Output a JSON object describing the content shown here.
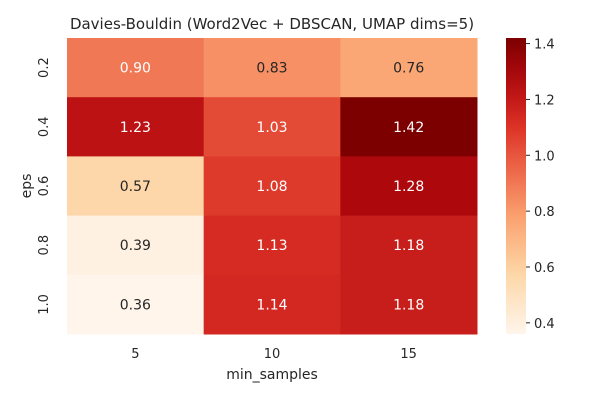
{
  "chart_data": {
    "type": "heatmap",
    "title": "Davies-Bouldin (Word2Vec + DBSCAN, UMAP dims=5)",
    "xlabel": "min_samples",
    "ylabel": "eps",
    "x_categories": [
      "5",
      "10",
      "15"
    ],
    "y_categories": [
      "0.2",
      "0.4",
      "0.6",
      "0.8",
      "1.0"
    ],
    "values": [
      [
        0.9,
        0.83,
        0.76
      ],
      [
        1.23,
        1.03,
        1.42
      ],
      [
        0.57,
        1.08,
        1.28
      ],
      [
        0.39,
        1.13,
        1.18
      ],
      [
        0.36,
        1.14,
        1.18
      ]
    ],
    "labels": [
      [
        "0.90",
        "0.83",
        "0.76"
      ],
      [
        "1.23",
        "1.03",
        "1.42"
      ],
      [
        "0.57",
        "1.08",
        "1.28"
      ],
      [
        "0.39",
        "1.13",
        "1.18"
      ],
      [
        "0.36",
        "1.14",
        "1.18"
      ]
    ],
    "colormap": "OrRd-like (Reds)",
    "vmin": 0.36,
    "vmax": 1.42,
    "colorbar_ticks": [
      "0.4",
      "0.6",
      "0.8",
      "1.0",
      "1.2",
      "1.4"
    ],
    "colorbar_tick_values": [
      0.4,
      0.6,
      0.8,
      1.0,
      1.2,
      1.4
    ],
    "colorbar_range": [
      0.36,
      1.42
    ]
  }
}
